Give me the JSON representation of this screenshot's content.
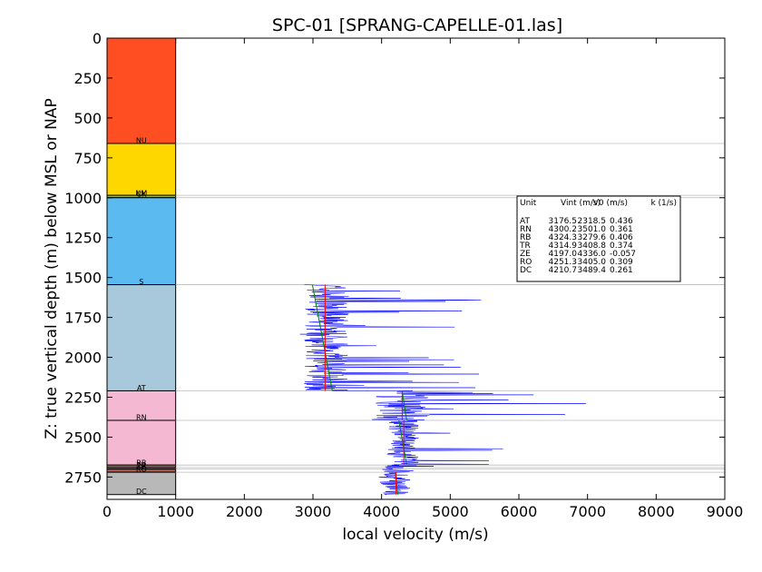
{
  "chart_data": {
    "type": "line",
    "title": "SPC-01 [SPRANG-CAPELLE-01.las]",
    "xlabel": "local velocity (m/s)",
    "ylabel": "Z: true vertical depth (m) below MSL or NAP",
    "xlim": [
      0,
      9000
    ],
    "ylim": [
      2890,
      0
    ],
    "y_inverted": true,
    "x_ticks": [
      "0",
      "1000",
      "2000",
      "3000",
      "4000",
      "5000",
      "6000",
      "7000",
      "8000",
      "9000"
    ],
    "y_ticks": [
      "0",
      "250",
      "500",
      "750",
      "1000",
      "1250",
      "1500",
      "1750",
      "2000",
      "2250",
      "2500",
      "2750"
    ],
    "units": [
      {
        "name": "NU",
        "top": 0,
        "base": 660,
        "color": "#ff4f22"
      },
      {
        "name": "NM",
        "top": 660,
        "base": 985,
        "color": "#ffd700"
      },
      {
        "name": "CK",
        "top": 985,
        "base": 998,
        "color": "#a9d46b"
      },
      {
        "name": "KN",
        "top": 998,
        "base": 1000,
        "color": "#8fd0c4"
      },
      {
        "name": "S",
        "top": 1000,
        "base": 1545,
        "color": "#5bbbf0"
      },
      {
        "name": "AT",
        "top": 1545,
        "base": 2210,
        "color": "#a8c8dc"
      },
      {
        "name": "RN",
        "top": 2210,
        "base": 2395,
        "color": "#f5b8d3"
      },
      {
        "name": "RB",
        "top": 2395,
        "base": 2675,
        "color": "#f5b8d3"
      },
      {
        "name": "TR",
        "top": 2675,
        "base": 2690,
        "color": "#b06a5a"
      },
      {
        "name": "ZE",
        "top": 2690,
        "base": 2700,
        "color": "#c87a6a"
      },
      {
        "name": "RO",
        "top": 2700,
        "base": 2720,
        "color": "#b05848"
      },
      {
        "name": "DC",
        "top": 2720,
        "base": 2860,
        "color": "#b8b8b8"
      }
    ],
    "unit_label_positions": [
      {
        "text": "NU",
        "depth": 640
      },
      {
        "text": "NM",
        "depth": 970
      },
      {
        "text": "CK",
        "depth": 975
      },
      {
        "text": "S",
        "depth": 1525
      },
      {
        "text": "AT",
        "depth": 2190
      },
      {
        "text": "RN",
        "depth": 2375
      },
      {
        "text": "RB",
        "depth": 2660
      },
      {
        "text": "TR",
        "depth": 2675
      },
      {
        "text": "ZE",
        "depth": 2683
      },
      {
        "text": "RO",
        "depth": 2698
      },
      {
        "text": "DC",
        "depth": 2840
      }
    ],
    "boundaries": [
      660,
      985,
      1000,
      1545,
      2210,
      2395,
      2675,
      2690,
      2700,
      2720
    ],
    "velocity_segments": [
      {
        "start": 1545,
        "end": 2210,
        "mean": 3200,
        "spread": 650,
        "skew": 0.35
      },
      {
        "start": 2210,
        "end": 2395,
        "mean": 4300,
        "spread": 800,
        "skew": 0.45
      },
      {
        "start": 2395,
        "end": 2675,
        "mean": 4320,
        "spread": 450,
        "skew": 0.3
      },
      {
        "start": 2675,
        "end": 2860,
        "mean": 4200,
        "spread": 450,
        "skew": 0.15
      }
    ],
    "vint_lines": [
      {
        "unit": "AT",
        "top": 1545,
        "base": 2210,
        "vint": 3176.5,
        "color": "#ff0000"
      },
      {
        "unit": "RN",
        "top": 2210,
        "base": 2395,
        "vint": 4300.2,
        "color": "#ff0000"
      },
      {
        "unit": "RB",
        "top": 2395,
        "base": 2675,
        "vint": 4324.3,
        "color": "#ff0000"
      },
      {
        "unit": "DC",
        "top": 2720,
        "base": 2860,
        "vint": 4210.7,
        "color": "#ff0000"
      }
    ],
    "trend_lines": [
      {
        "unit": "AT",
        "v0": 2318.5,
        "k": 0.436,
        "top": 1545,
        "base": 2210,
        "color": "#008000"
      },
      {
        "unit": "RN",
        "v0": 3501.0,
        "k": 0.361,
        "top": 2210,
        "base": 2395,
        "color": "#008000"
      },
      {
        "unit": "RB",
        "v0": 3279.6,
        "k": 0.406,
        "top": 2395,
        "base": 2675,
        "color": "#008000"
      },
      {
        "unit": "DC",
        "v0": 3489.4,
        "k": 0.261,
        "top": 2720,
        "base": 2860,
        "color": "#008000"
      }
    ],
    "legend": {
      "placement": "right",
      "header": {
        "unit": "Unit",
        "vint": "Vint (m/s)",
        "v0": "V0 (m/s)",
        "k": "k (1/s)"
      },
      "rows": [
        {
          "unit": "AT",
          "vint": "3176.5",
          "v0": "2318.5",
          "k": "0.436"
        },
        {
          "unit": "RN",
          "vint": "4300.2",
          "v0": "3501.0",
          "k": "0.361"
        },
        {
          "unit": "RB",
          "vint": "4324.3",
          "v0": "3279.6",
          "k": "0.406"
        },
        {
          "unit": "TR",
          "vint": "4314.9",
          "v0": "3408.8",
          "k": "0.374"
        },
        {
          "unit": "ZE",
          "vint": "4197.0",
          "v0": "4336.0",
          "k": "-0.057"
        },
        {
          "unit": "RO",
          "vint": "4251.3",
          "v0": "3405.0",
          "k": "0.309"
        },
        {
          "unit": "DC",
          "vint": "4210.7",
          "v0": "3489.4",
          "k": "0.261"
        }
      ]
    }
  }
}
